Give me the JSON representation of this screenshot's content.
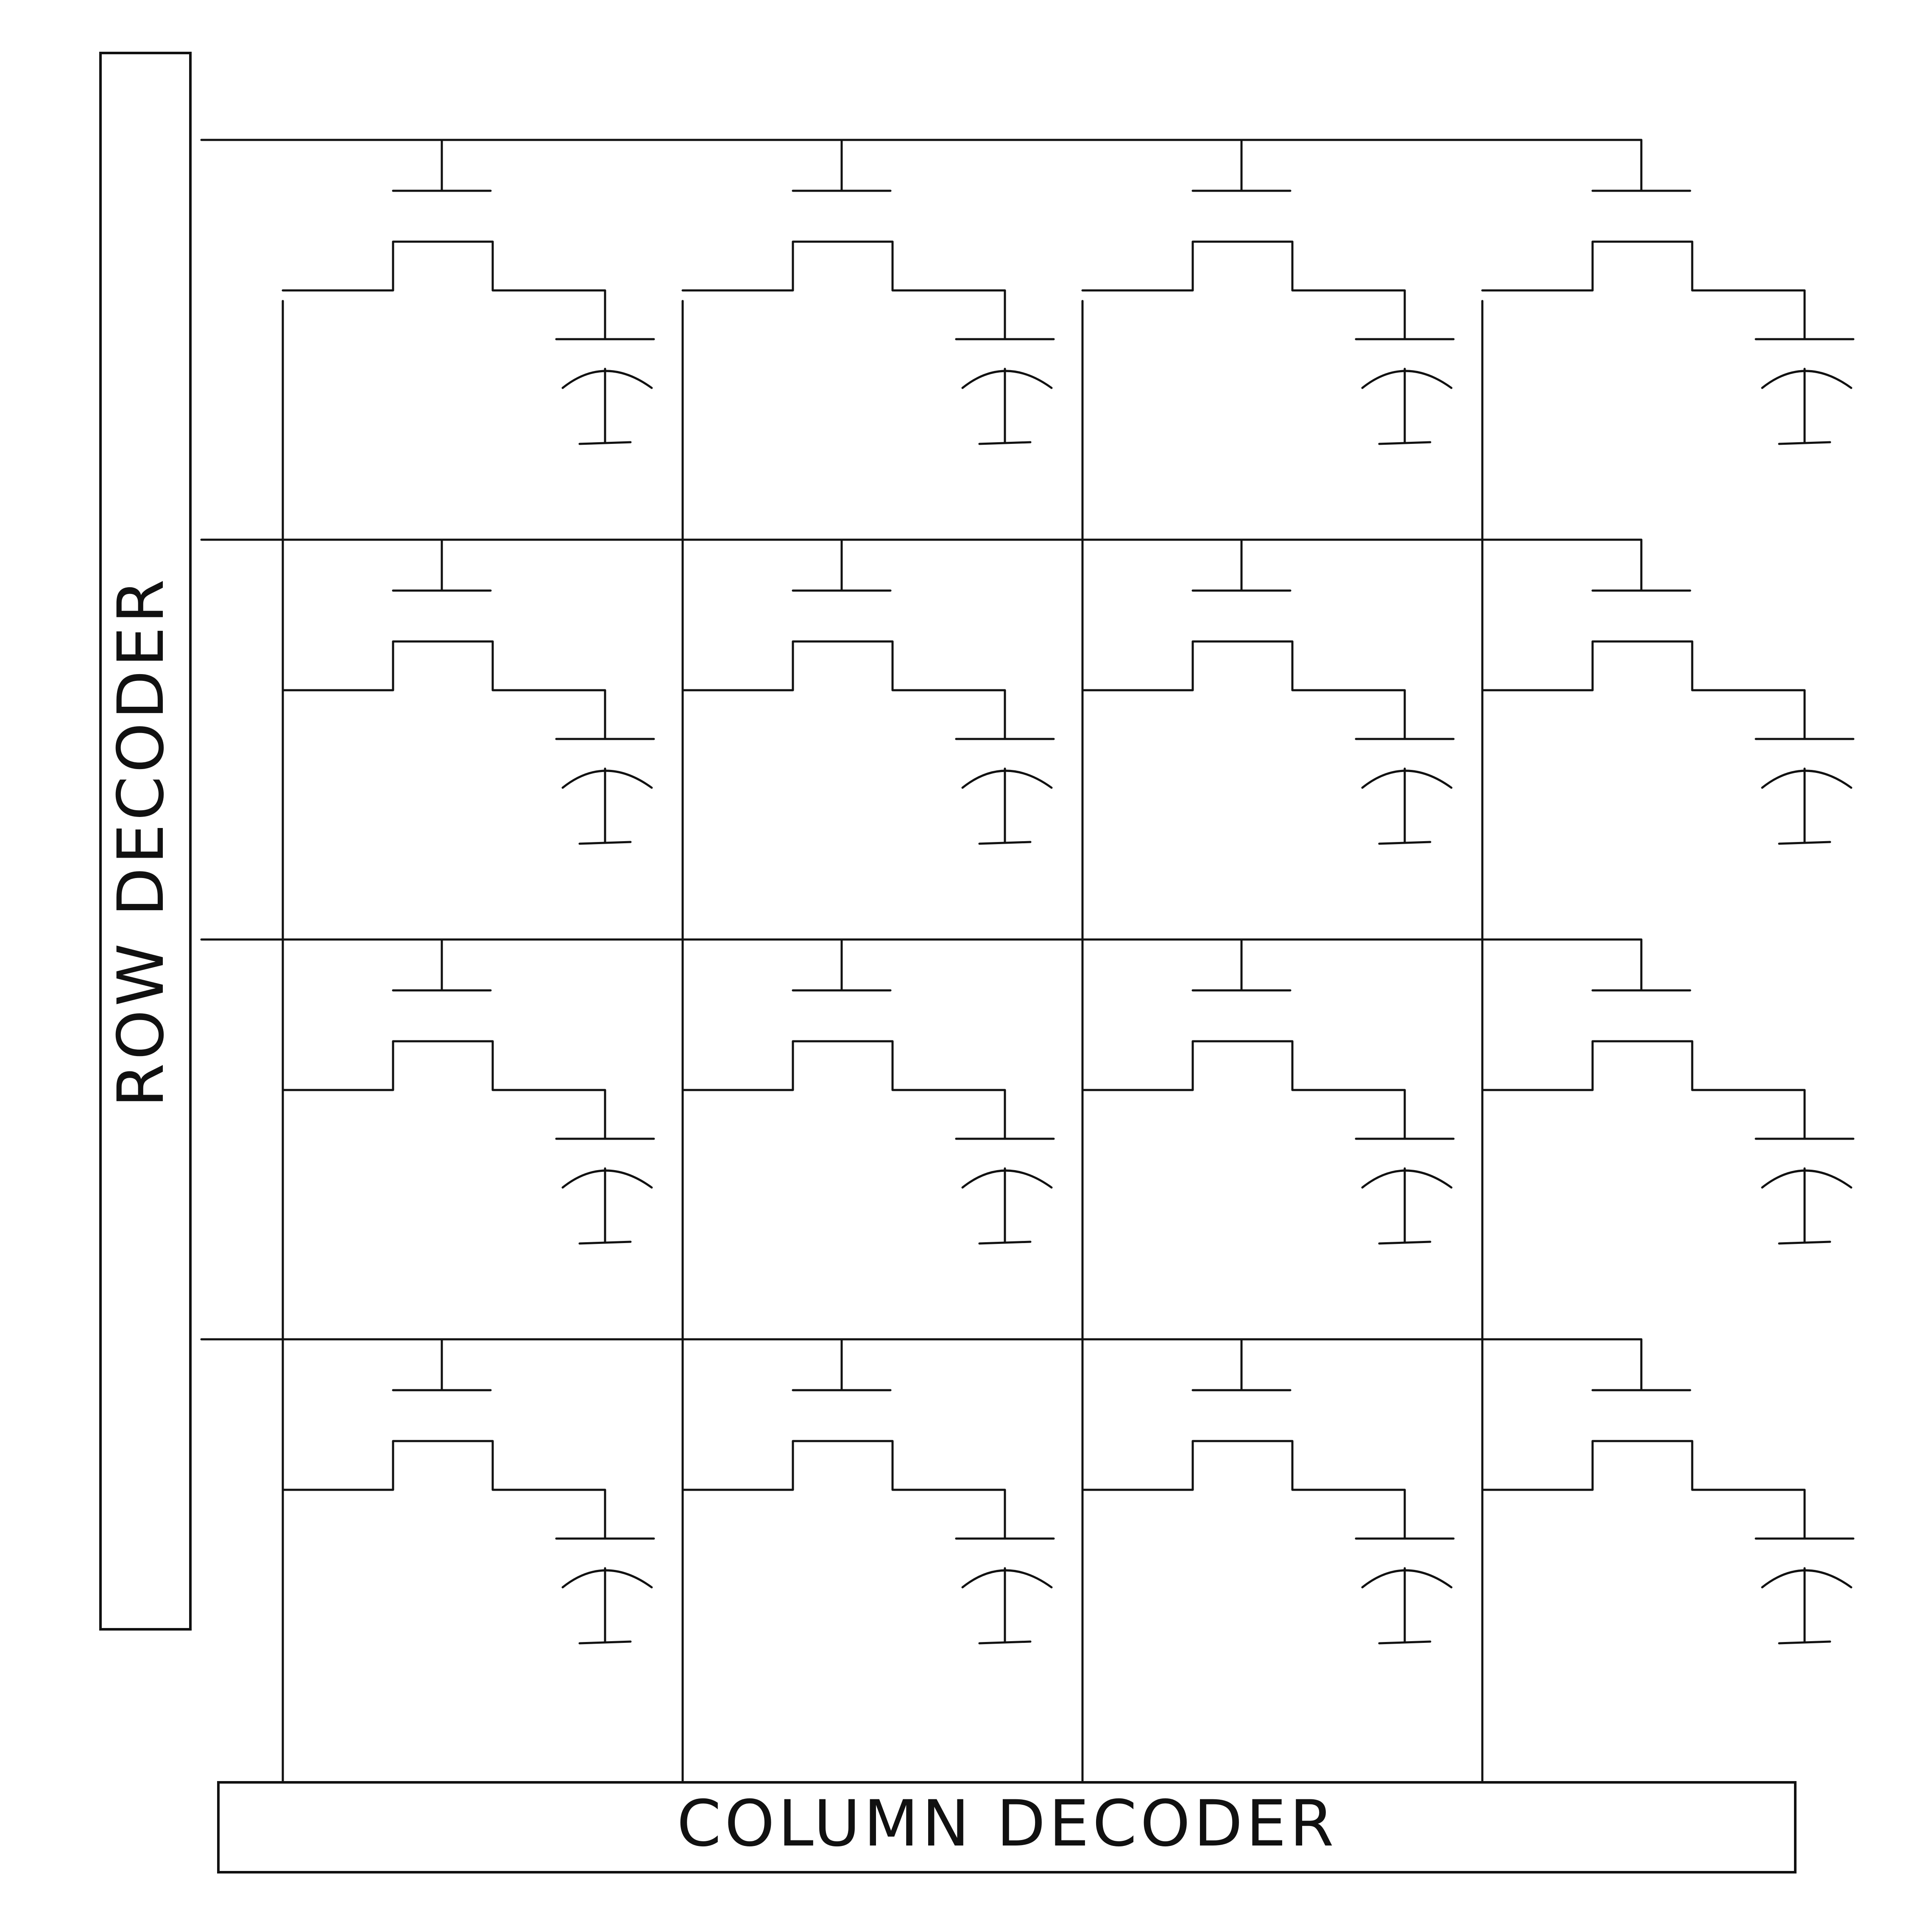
{
  "diagram": {
    "row_decoder_label": "ROW DECODER",
    "column_decoder_label": "COLUMN DECODER",
    "rows": 4,
    "columns": 4,
    "stroke_color": "#111111",
    "background_color": "#ffffff"
  }
}
